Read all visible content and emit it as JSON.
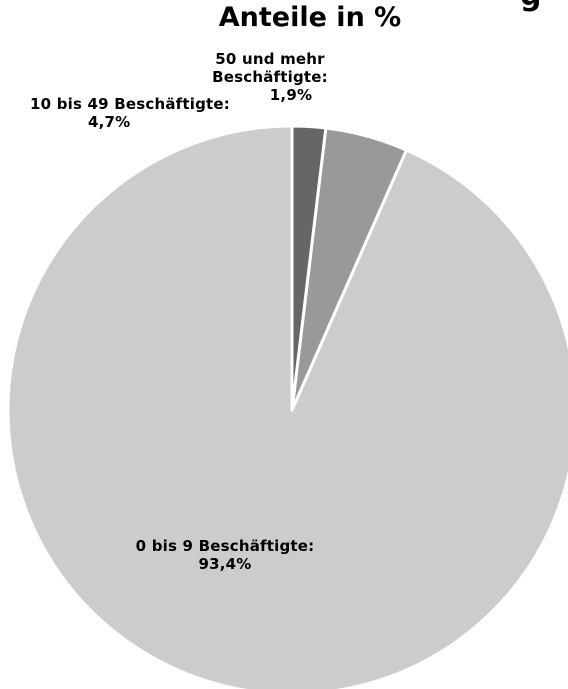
{
  "title": "Anteile in %",
  "title_fragment": "g",
  "chart_data": {
    "type": "pie",
    "title": "Anteile in %",
    "slices": [
      {
        "label": "0 bis 9 Beschäftigte",
        "value": 93.4,
        "display": "93,4%",
        "color": "#cccccc"
      },
      {
        "label": "10 bis 49 Beschäftigte",
        "value": 4.7,
        "display": "4,7%",
        "color": "#999999"
      },
      {
        "label": "50 und mehr Beschäftigte",
        "value": 1.9,
        "display": "1,9%",
        "color": "#666666"
      }
    ],
    "labels": {
      "large": {
        "line1": "0 bis 9 Beschäftigte:",
        "line2": "93,4%"
      },
      "medium": {
        "line1": "10 bis 49 Beschäftigte:",
        "line2": "4,7%"
      },
      "small": {
        "line1": "50 und mehr",
        "line2": "Beschäftigte:",
        "line3": "1,9%"
      }
    },
    "legend": "none"
  }
}
